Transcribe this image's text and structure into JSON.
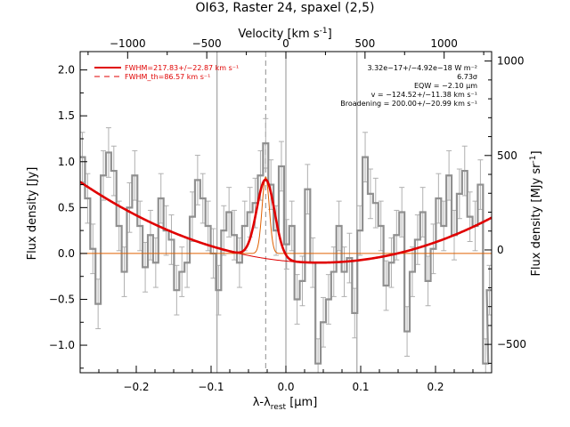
{
  "chart_data": {
    "type": "line",
    "title": "OI63, Raster 24, spaxel (2,5)",
    "xlabel_main": "λ-λ",
    "xlabel_sub": "rest",
    "xlabel_unit": " [μm]",
    "ylabel_left": "Flux density [Jy]",
    "ylabel_right": "Flux density [MJy sr",
    "ylabel_right_sup": "-1",
    "ylabel_right_end": "]",
    "xlabel_top": "Velocity [km s",
    "xlabel_top_sup": "-1",
    "xlabel_top_end": "]",
    "xlim": [
      -0.275,
      0.275
    ],
    "ylim": [
      -1.3,
      2.2
    ],
    "velocity_lim": [
      -1300,
      1300
    ],
    "right_lim": [
      -650,
      1050
    ],
    "x_ticks": [
      -0.2,
      -0.1,
      0.0,
      0.1,
      0.2
    ],
    "x_tick_labels": [
      "−0.2",
      "−0.1",
      "0.0",
      "0.1",
      "0.2"
    ],
    "y_ticks": [
      -1.0,
      -0.5,
      0.0,
      0.5,
      1.0,
      1.5,
      2.0
    ],
    "y_tick_labels": [
      "−1.0",
      "−0.5",
      "0.0",
      "0.5",
      "1.0",
      "1.5",
      "2.0"
    ],
    "v_ticks": [
      -1000,
      -500,
      0,
      500,
      1000
    ],
    "v_tick_labels": [
      "−1000",
      "−500",
      "0",
      "500",
      "1000"
    ],
    "r_ticks": [
      -500,
      0,
      500,
      1000
    ],
    "r_tick_labels": [
      "−500",
      "0",
      "500",
      "1000"
    ],
    "vertical_lines": [
      -0.092,
      0.0,
      0.095
    ],
    "dashed_line": -0.027,
    "colors": {
      "fit": "#e00000",
      "fit_thin": "#e06000",
      "spectrum": "#909090",
      "errbar": "#b0b0b0",
      "ref": "#909090"
    },
    "legend": [
      {
        "label": "FWHM=217.83+/−22.87 km s⁻¹",
        "style": "solid"
      },
      {
        "label": "FWHM_th=86.57 km s⁻¹",
        "style": "dashed"
      }
    ],
    "annotations": [
      "3.32e−17+/−4.92e−18 W m⁻²",
      "6.73σ",
      "EQW = −2.10 μm",
      "v = −124.52+/−11.38 km s⁻¹",
      "Broadening = 200.00+/−20.99 km s⁻¹"
    ],
    "fit_model": {
      "center": -0.027,
      "amplitude": 0.86,
      "sigma": 0.012,
      "sigma_thin": 0.0048,
      "baseline_min_x": 0.045,
      "baseline_min_y": -0.1,
      "baseline_left_y": 0.78,
      "baseline_right_y": 0.39
    },
    "spectrum": {
      "x": [
        -0.272,
        -0.265,
        -0.258,
        -0.251,
        -0.244,
        -0.237,
        -0.23,
        -0.223,
        -0.216,
        -0.209,
        -0.202,
        -0.195,
        -0.188,
        -0.181,
        -0.174,
        -0.167,
        -0.16,
        -0.153,
        -0.146,
        -0.139,
        -0.132,
        -0.125,
        -0.118,
        -0.111,
        -0.104,
        -0.097,
        -0.09,
        -0.083,
        -0.076,
        -0.069,
        -0.062,
        -0.055,
        -0.048,
        -0.041,
        -0.034,
        -0.027,
        -0.02,
        -0.013,
        -0.006,
        0.001,
        0.008,
        0.015,
        0.022,
        0.029,
        0.036,
        0.043,
        0.05,
        0.057,
        0.064,
        0.071,
        0.078,
        0.085,
        0.092,
        0.099,
        0.106,
        0.113,
        0.12,
        0.127,
        0.134,
        0.141,
        0.148,
        0.155,
        0.162,
        0.169,
        0.176,
        0.183,
        0.19,
        0.197,
        0.204,
        0.211,
        0.218,
        0.225,
        0.232,
        0.239,
        0.246,
        0.253,
        0.26,
        0.267,
        0.272
      ],
      "y": [
        1.05,
        0.6,
        0.05,
        -0.55,
        0.85,
        1.1,
        0.9,
        0.3,
        -0.2,
        0.5,
        0.85,
        0.3,
        -0.15,
        0.2,
        -0.1,
        0.6,
        0.25,
        0.15,
        -0.4,
        -0.2,
        -0.1,
        0.4,
        0.8,
        0.6,
        0.3,
        0.0,
        -0.4,
        0.25,
        0.45,
        0.2,
        -0.1,
        0.3,
        0.45,
        0.55,
        0.85,
        1.2,
        0.75,
        0.25,
        0.95,
        0.1,
        0.3,
        -0.5,
        -0.3,
        0.7,
        -0.1,
        -1.2,
        -0.75,
        -0.5,
        -0.2,
        0.3,
        -0.2,
        -0.05,
        -0.65,
        0.25,
        1.05,
        0.65,
        0.55,
        0.3,
        -0.35,
        -0.1,
        0.2,
        0.45,
        -0.85,
        -0.2,
        0.15,
        0.45,
        -0.3,
        0.05,
        0.6,
        0.3,
        0.85,
        0.2,
        0.65,
        0.9,
        0.4,
        0.3,
        0.75,
        -1.2,
        -0.4
      ],
      "err": 0.27
    }
  }
}
